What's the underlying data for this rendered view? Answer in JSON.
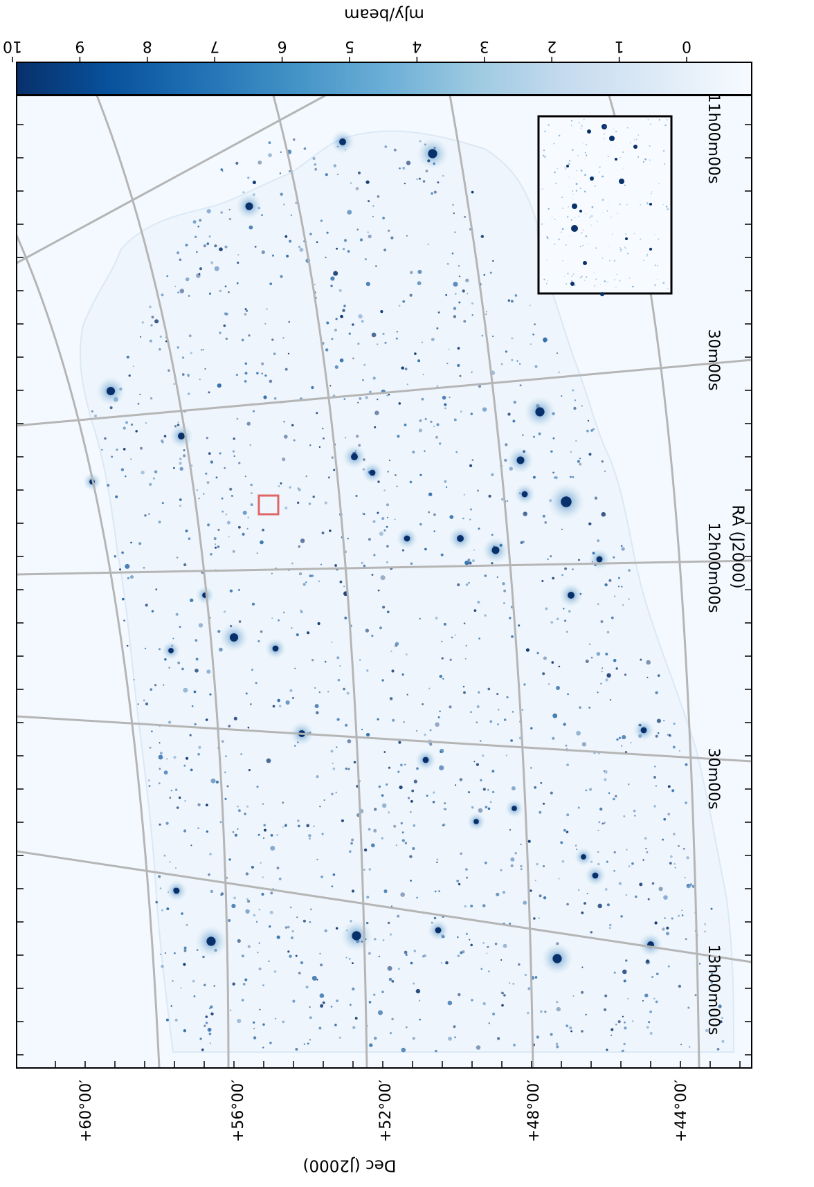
{
  "figure": {
    "colorbar": {
      "label": "mJy/beam",
      "ticks": [
        "0",
        "1",
        "2",
        "3",
        "4",
        "5",
        "6",
        "7",
        "8",
        "9",
        "10"
      ],
      "colormap": [
        "#f7fbff",
        "#deebf7",
        "#c6dbef",
        "#9ecae1",
        "#6baed6",
        "#4292c6",
        "#2171b5",
        "#08519c",
        "#08306b"
      ]
    },
    "ra_axis": {
      "title": "RA (J2000)",
      "ticks": [
        "11h00m00s",
        "30m00s",
        "12h00m00s",
        "30m00s",
        "13h00m00s"
      ]
    },
    "dec_axis": {
      "title": "Dec (J2000)",
      "ticks": [
        "+60°00′",
        "+56°00′",
        "+52°00′",
        "+48°00′",
        "+44°00′"
      ]
    },
    "colors": {
      "grid": "#b5b5b5",
      "frame": "#000000",
      "highlight_box": "#e06666",
      "background": "#f4f9ff",
      "source": "#08306b"
    }
  }
}
